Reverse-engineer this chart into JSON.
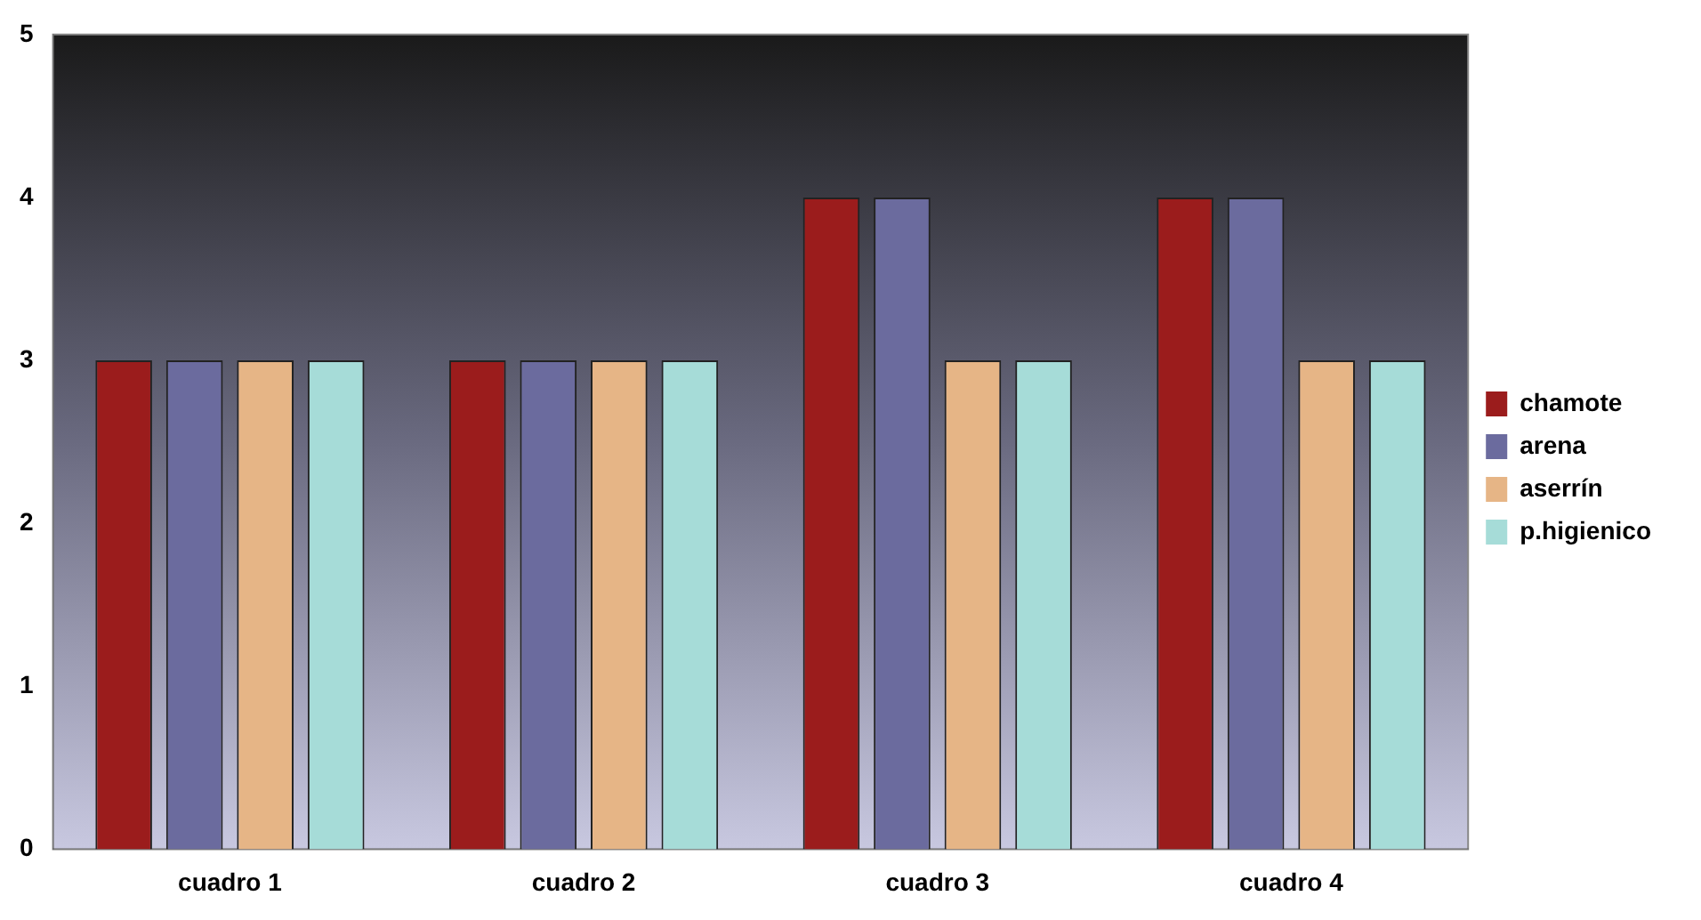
{
  "chart_data": {
    "type": "bar",
    "categories": [
      "cuadro 1",
      "cuadro 2",
      "cuadro 3",
      "cuadro 4"
    ],
    "series": [
      {
        "name": "chamote",
        "color": "#9b1c1c",
        "values": [
          3,
          3,
          4,
          4
        ]
      },
      {
        "name": "arena",
        "color": "#6b6b9e",
        "values": [
          3,
          3,
          4,
          4
        ]
      },
      {
        "name": "aserrín",
        "color": "#e6b586",
        "values": [
          3,
          3,
          3,
          3
        ]
      },
      {
        "name": "p.higienico",
        "color": "#a6dcd8",
        "values": [
          3,
          3,
          3,
          3
        ]
      }
    ],
    "ylim": [
      0,
      5
    ],
    "yticks": [
      0,
      1,
      2,
      3,
      4,
      5
    ],
    "grid": false,
    "legend": "right"
  }
}
